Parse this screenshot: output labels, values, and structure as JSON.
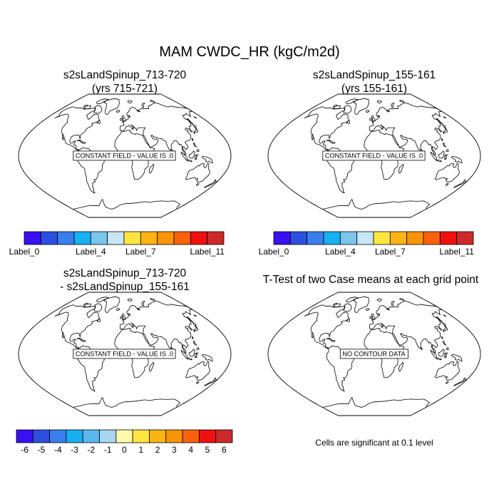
{
  "main_title": "MAM CWDC_HR (kgC/m2d)",
  "panels": [
    {
      "title_line1": "s2sLandSpinup_713-720",
      "title_line2": "(yrs 715-721)",
      "map_message": "CONSTANT FIELD - VALUE IS .0"
    },
    {
      "title_line1": "s2sLandSpinup_155-161",
      "title_line2": "(yrs 155-161)",
      "map_message": "CONSTANT FIELD - VALUE IS .0"
    },
    {
      "title_line1": "s2sLandSpinup_713-720",
      "title_line2": "- s2sLandSpinup_155-161",
      "map_message": "CONSTANT FIELD - VALUE IS .0"
    },
    {
      "title_line1": "T-Test of two Case means at each grid point",
      "title_line2": "",
      "map_message": "NO CONTOUR DATA"
    }
  ],
  "colorbar_case": {
    "colors": [
      "#3a10f0",
      "#2c4fe0",
      "#3a7fee",
      "#18b0f0",
      "#7ac5ea",
      "#c8e6f5",
      "#fde640",
      "#fbb414",
      "#f99408",
      "#f9620a",
      "#f01010",
      "#cc2a2a"
    ],
    "labels": [
      "Label_0",
      "Label_4",
      "Label_7",
      "Label_11"
    ],
    "label_boundaries": [
      0,
      4,
      7,
      11
    ]
  },
  "colorbar_diff": {
    "colors": [
      "#3a10f0",
      "#2c4fe0",
      "#3a7fee",
      "#18b0f0",
      "#5ab8ee",
      "#a8d5f0",
      "#fffaa8",
      "#fde640",
      "#fbb414",
      "#f99408",
      "#f9620a",
      "#f01010",
      "#cc2a2a"
    ],
    "labels": [
      "-6",
      "-5",
      "-4",
      "-3",
      "-2",
      "-1",
      "0",
      "1",
      "2",
      "3",
      "4",
      "5",
      "6"
    ]
  },
  "significance_note": "Cells are significant at 0.1 level"
}
